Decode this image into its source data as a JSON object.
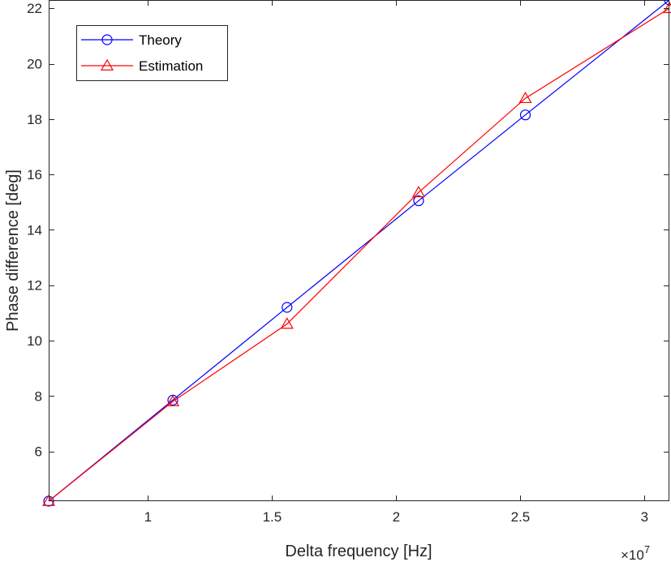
{
  "chart_data": {
    "type": "line",
    "title": "",
    "xlabel": "Delta frequency [Hz]",
    "ylabel": "Phase difference [deg]",
    "x_multiplier_label": "×10",
    "x_multiplier_exponent": "7",
    "xlim": [
      0.6,
      3.1
    ],
    "ylim": [
      4.2,
      22.3
    ],
    "x_ticks": [
      1,
      1.5,
      2,
      2.5,
      3
    ],
    "x_tick_labels": [
      "1",
      "1.5",
      "2",
      "2.5",
      "3"
    ],
    "y_ticks": [
      6,
      8,
      10,
      12,
      14,
      16,
      18,
      20,
      22
    ],
    "y_tick_labels": [
      "6",
      "8",
      "10",
      "12",
      "14",
      "16",
      "18",
      "20",
      "22"
    ],
    "grid": false,
    "legend_position": "top-left",
    "x": [
      0.6,
      1.1,
      1.56,
      2.09,
      2.52,
      3.1
    ],
    "series": [
      {
        "name": "Theory",
        "color": "#0000ff",
        "marker": "circle",
        "values": [
          4.2,
          7.85,
          11.2,
          15.05,
          18.15,
          22.3
        ]
      },
      {
        "name": "Estimation",
        "color": "#ff0000",
        "marker": "triangle",
        "values": [
          4.2,
          7.8,
          10.6,
          15.35,
          18.75,
          22.0
        ]
      }
    ]
  }
}
